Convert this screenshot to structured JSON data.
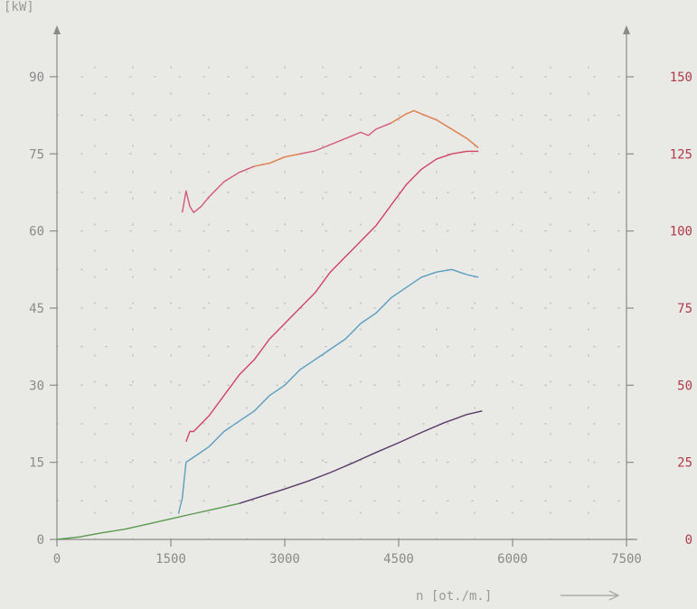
{
  "chart_data": {
    "type": "line",
    "title": "",
    "xlabel": "n [ot./m.]",
    "ylabel_left": "[kW]",
    "ylabel_right": "",
    "xlim": [
      0,
      7500
    ],
    "ylim_left": [
      0,
      100
    ],
    "ylim_right": [
      0,
      166.7
    ],
    "x_ticks": [
      "0",
      "1500",
      "3000",
      "4500",
      "6000",
      "7500"
    ],
    "y_ticks_left": [
      "0",
      "15",
      "30",
      "45",
      "60",
      "75",
      "90"
    ],
    "y_ticks_right": [
      "0",
      "25",
      "50",
      "75",
      "100",
      "125",
      "150"
    ],
    "grid": "dotted",
    "legend": "none",
    "colors": {
      "axis": "#8a8a8a",
      "grid": "#b7b7b7",
      "right_ticks": "#b03a4a",
      "torque": "#d4587a",
      "torque_peak": "#e08a50",
      "wheel_power": "#d04466",
      "engine_power": "#5a9ec0",
      "loss_power": "#5a9a4e",
      "loss_power_high": "#5a3a6a"
    },
    "series": [
      {
        "axis": "right",
        "values": [
          [
            1650,
            106
          ],
          [
            1700,
            113
          ],
          [
            1750,
            108
          ],
          [
            1800,
            106
          ],
          [
            1900,
            108
          ],
          [
            2000,
            111
          ],
          [
            2200,
            116
          ],
          [
            2400,
            119
          ],
          [
            2600,
            121
          ],
          [
            2800,
            122
          ],
          [
            3000,
            124
          ],
          [
            3200,
            125
          ],
          [
            3400,
            126
          ],
          [
            3600,
            128
          ],
          [
            3800,
            130
          ],
          [
            4000,
            132
          ],
          [
            4100,
            131
          ],
          [
            4200,
            133
          ],
          [
            4400,
            135
          ],
          [
            4600,
            138
          ],
          [
            4700,
            139
          ],
          [
            4800,
            138
          ],
          [
            5000,
            136
          ],
          [
            5200,
            133
          ],
          [
            5400,
            130
          ],
          [
            5550,
            127
          ]
        ]
      },
      {
        "axis": "left",
        "values": [
          [
            1700,
            19
          ],
          [
            1750,
            21
          ],
          [
            1800,
            21
          ],
          [
            2000,
            24
          ],
          [
            2200,
            28
          ],
          [
            2400,
            32
          ],
          [
            2600,
            35
          ],
          [
            2800,
            39
          ],
          [
            3000,
            42
          ],
          [
            3200,
            45
          ],
          [
            3400,
            48
          ],
          [
            3600,
            52
          ],
          [
            3800,
            55
          ],
          [
            4000,
            58
          ],
          [
            4200,
            61
          ],
          [
            4400,
            65
          ],
          [
            4600,
            69
          ],
          [
            4800,
            72
          ],
          [
            5000,
            74
          ],
          [
            5200,
            75
          ],
          [
            5400,
            75.5
          ],
          [
            5550,
            75.5
          ]
        ]
      },
      {
        "axis": "left",
        "values": [
          [
            1600,
            5
          ],
          [
            1650,
            8
          ],
          [
            1700,
            15
          ],
          [
            1800,
            16
          ],
          [
            2000,
            18
          ],
          [
            2200,
            21
          ],
          [
            2400,
            23
          ],
          [
            2600,
            25
          ],
          [
            2800,
            28
          ],
          [
            3000,
            30
          ],
          [
            3200,
            33
          ],
          [
            3400,
            35
          ],
          [
            3600,
            37
          ],
          [
            3800,
            39
          ],
          [
            4000,
            42
          ],
          [
            4200,
            44
          ],
          [
            4400,
            47
          ],
          [
            4600,
            49
          ],
          [
            4800,
            51
          ],
          [
            5000,
            52
          ],
          [
            5200,
            52.5
          ],
          [
            5400,
            51.5
          ],
          [
            5550,
            51
          ]
        ]
      },
      {
        "axis": "left",
        "values": [
          [
            0,
            0
          ],
          [
            300,
            0.5
          ],
          [
            600,
            1.3
          ],
          [
            900,
            2
          ],
          [
            1200,
            3
          ],
          [
            1500,
            4
          ],
          [
            1800,
            5
          ],
          [
            2100,
            6
          ],
          [
            2400,
            7
          ],
          [
            2700,
            8.4
          ],
          [
            3000,
            9.8
          ],
          [
            3300,
            11.3
          ],
          [
            3600,
            13
          ],
          [
            3900,
            14.9
          ],
          [
            4200,
            16.9
          ],
          [
            4500,
            18.8
          ],
          [
            4800,
            20.8
          ],
          [
            5100,
            22.7
          ],
          [
            5400,
            24.3
          ],
          [
            5600,
            25
          ]
        ]
      }
    ]
  }
}
